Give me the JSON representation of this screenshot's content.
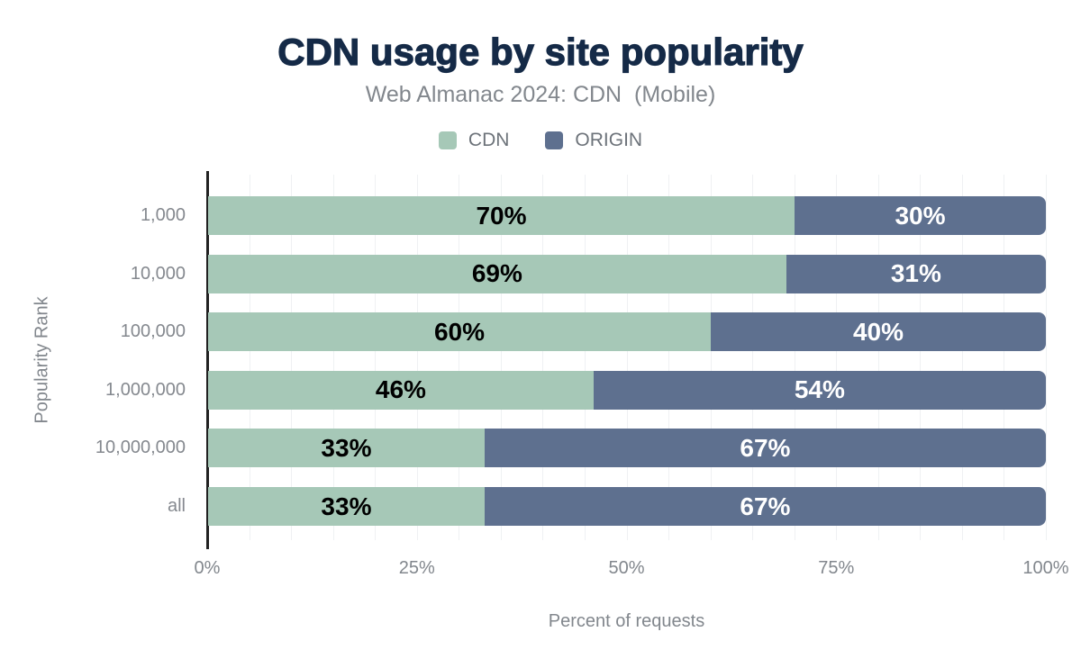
{
  "header": {
    "title": "CDN usage by site popularity",
    "subtitle": "Web Almanac 2024: CDN  (Mobile)"
  },
  "legend": [
    {
      "label": "CDN",
      "color": "#a6c8b7"
    },
    {
      "label": "ORIGIN",
      "color": "#5e708f"
    }
  ],
  "chart_data": {
    "type": "bar",
    "orientation": "horizontal",
    "stacked": true,
    "title": "CDN usage by site popularity",
    "subtitle": "Web Almanac 2024: CDN  (Mobile)",
    "categories": [
      "1,000",
      "10,000",
      "100,000",
      "1,000,000",
      "10,000,000",
      "all"
    ],
    "series": [
      {
        "name": "CDN",
        "color": "#a6c8b7",
        "label_color": "#000000",
        "values": [
          70,
          69,
          60,
          46,
          33,
          33
        ]
      },
      {
        "name": "ORIGIN",
        "color": "#5e708f",
        "label_color": "#ffffff",
        "values": [
          30,
          31,
          40,
          54,
          67,
          67
        ]
      }
    ],
    "xlabel": "Percent of requests",
    "ylabel": "Popularity Rank",
    "x_ticks": [
      "0%",
      "25%",
      "50%",
      "75%",
      "100%"
    ],
    "xlim": [
      0,
      100
    ],
    "grid": true,
    "grid_interval": 5,
    "legend_position": "top",
    "value_label_suffix": "%"
  },
  "colors": {
    "title": "#152a47",
    "muted_text": "#82878d",
    "legend_text": "#6d737a",
    "axis_line": "#212121",
    "gridline": "#eff1f3",
    "background": "#ffffff"
  }
}
